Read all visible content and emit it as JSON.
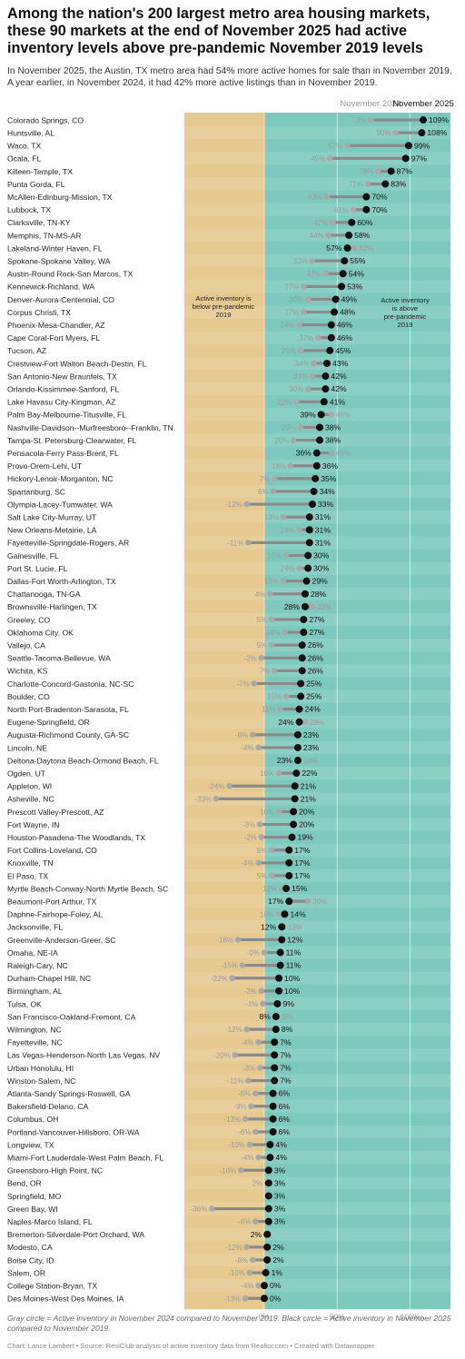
{
  "title": "Among the nation's 200 largest metro area housing markets, these 90 markets at the end of November 2025 had active inventory levels above pre-pandemic November 2019 levels",
  "subtitle": "In November 2025, the Austin, TX metro area had 54% more active homes for sale than in November 2019. A year earlier, in November 2024, it had 42% more active listings than in November 2019.",
  "note": "Gray circle = Active inventory in November 2024 compared to November 2019. Black circle = Active inventory in November 2025 compared to November 2019.",
  "credit": "Chart: Lance Lambert • Source: ResiClub analysis of active inventory data from Realtor.com • Created with Datawrapper",
  "colors": {
    "below_zone": "#e6c98f",
    "above_zone": "#7ec9be",
    "dot_2025": "#111111",
    "dot_2024": "#a8a8a8",
    "line": "#8a8a8a"
  },
  "chart_data": {
    "type": "dot",
    "legend": {
      "series_2024": "November 2024",
      "series_2025": "November 2025"
    },
    "annotations": {
      "below": "Active inventory is below pre-pandemic 2019",
      "above": "Active inventory is above pre-pandemic 2019"
    },
    "x_ticks": [
      {
        "value": 0,
        "label": "0%"
      },
      {
        "value": 50,
        "label": "50%"
      },
      {
        "value": 100,
        "label": "100%"
      }
    ],
    "xlim": [
      -50,
      115
    ],
    "metros": [
      {
        "name": "Colorado Springs, CO",
        "nov2024": 73,
        "nov2025": 109,
        "label2024": "73%",
        "label2025": "109%"
      },
      {
        "name": "Huntsville, AL",
        "nov2024": 90,
        "nov2025": 108,
        "label2024": "90%",
        "label2025": "108%"
      },
      {
        "name": "Waco, TX",
        "nov2024": 57,
        "nov2025": 99,
        "label2024": "57%",
        "label2025": "99%"
      },
      {
        "name": "Ocala, FL",
        "nov2024": 45,
        "nov2025": 97,
        "label2024": "45%",
        "label2025": "97%"
      },
      {
        "name": "Killeen-Temple, TX",
        "nov2024": 78,
        "nov2025": 87,
        "label2024": "78%",
        "label2025": "87%"
      },
      {
        "name": "Punta Gorda, FL",
        "nov2024": 71,
        "nov2025": 83,
        "label2024": "71%",
        "label2025": "83%"
      },
      {
        "name": "McAllen-Edinburg-Mission, TX",
        "nov2024": 43,
        "nov2025": 70,
        "label2024": "43%",
        "label2025": "70%"
      },
      {
        "name": "Lubbock, TX",
        "nov2024": 61,
        "nov2025": 70,
        "label2024": "61%",
        "label2025": "70%"
      },
      {
        "name": "Clarksville, TN-KY",
        "nov2024": 47,
        "nov2025": 60,
        "label2024": "47%",
        "label2025": "60%"
      },
      {
        "name": "Memphis, TN-MS-AR",
        "nov2024": 44,
        "nov2025": 58,
        "label2024": "44%",
        "label2025": "58%"
      },
      {
        "name": "Lakeland-Winter Haven, FL",
        "nov2024": 62,
        "nov2025": 57,
        "label2024": "62%",
        "label2025": "57%"
      },
      {
        "name": "Spokane-Spokane Valley, WA",
        "nov2024": 33,
        "nov2025": 55,
        "label2024": "33%",
        "label2025": "55%"
      },
      {
        "name": "Austin-Round Rock-San Marcos, TX",
        "nov2024": 42,
        "nov2025": 54,
        "label2024": "42%",
        "label2025": "54%"
      },
      {
        "name": "Kennewick-Richland, WA",
        "nov2024": 27,
        "nov2025": 53,
        "label2024": "27%",
        "label2025": "53%"
      },
      {
        "name": "Denver-Aurora-Centennial, CO",
        "nov2024": 30,
        "nov2025": 49,
        "label2024": "30%",
        "label2025": "49%"
      },
      {
        "name": "Corpus Christi, TX",
        "nov2024": 27,
        "nov2025": 48,
        "label2024": "27%",
        "label2025": "48%"
      },
      {
        "name": "Phoenix-Mesa-Chandler, AZ",
        "nov2024": 24,
        "nov2025": 46,
        "label2024": "24%",
        "label2025": "46%"
      },
      {
        "name": "Cape Coral-Fort Myers, FL",
        "nov2024": 37,
        "nov2025": 46,
        "label2024": "37%",
        "label2025": "46%"
      },
      {
        "name": "Tucson, AZ",
        "nov2024": 25,
        "nov2025": 45,
        "label2024": "25%",
        "label2025": "45%"
      },
      {
        "name": "Crestview-Fort Walton Beach-Destin, FL",
        "nov2024": 34,
        "nov2025": 43,
        "label2024": "34%",
        "label2025": "43%"
      },
      {
        "name": "San Antonio-New Braunfels, TX",
        "nov2024": 33,
        "nov2025": 42,
        "label2024": "33%",
        "label2025": "42%"
      },
      {
        "name": "Orlando-Kissimmee-Sanford, FL",
        "nov2024": 30,
        "nov2025": 42,
        "label2024": "30%",
        "label2025": "42%"
      },
      {
        "name": "Lake Havasu City-Kingman, AZ",
        "nov2024": 22,
        "nov2025": 41,
        "label2024": "22%",
        "label2025": "41%"
      },
      {
        "name": "Palm Bay-Melbourne-Titusville, FL",
        "nov2024": 46,
        "nov2025": 39,
        "label2024": "46%",
        "label2025": "39%"
      },
      {
        "name": "Nashville-Davidson--Murfreesboro--Franklin, TN",
        "nov2024": 25,
        "nov2025": 38,
        "label2024": "25%",
        "label2025": "38%"
      },
      {
        "name": "Tampa-St. Petersburg-Clearwater, FL",
        "nov2024": 20,
        "nov2025": 38,
        "label2024": "20%",
        "label2025": "38%"
      },
      {
        "name": "Pensacola-Ferry Pass-Brent, FL",
        "nov2024": 46,
        "nov2025": 36,
        "label2024": "46%",
        "label2025": "36%"
      },
      {
        "name": "Provo-Orem-Lehi, UT",
        "nov2024": 18,
        "nov2025": 36,
        "label2024": "18%",
        "label2025": "36%"
      },
      {
        "name": "Hickory-Lenoir-Morganton, NC",
        "nov2024": 7,
        "nov2025": 35,
        "label2024": "7%",
        "label2025": "35%"
      },
      {
        "name": "Spartanburg, SC",
        "nov2024": 6,
        "nov2025": 34,
        "label2024": "6%",
        "label2025": "34%"
      },
      {
        "name": "Olympia-Lacey-Tumwater, WA",
        "nov2024": -12,
        "nov2025": 33,
        "label2024": "-12%",
        "label2025": "33%"
      },
      {
        "name": "Salt Lake City-Murray, UT",
        "nov2024": 13,
        "nov2025": 31,
        "label2024": "13%",
        "label2025": "31%"
      },
      {
        "name": "New Orleans-Metairie, LA",
        "nov2024": 24,
        "nov2025": 31,
        "label2024": "24%",
        "label2025": "31%"
      },
      {
        "name": "Fayetteville-Springdale-Rogers, AR",
        "nov2024": -11,
        "nov2025": 31,
        "label2024": "-11%",
        "label2025": "31%"
      },
      {
        "name": "Gainesville, FL",
        "nov2024": 15,
        "nov2025": 30,
        "label2024": "15%",
        "label2025": "30%"
      },
      {
        "name": "Port St. Lucie, FL",
        "nov2024": 24,
        "nov2025": 30,
        "label2024": "24%",
        "label2025": "30%"
      },
      {
        "name": "Dallas-Fort Worth-Arlington, TX",
        "nov2024": 13,
        "nov2025": 29,
        "label2024": "13%",
        "label2025": "29%"
      },
      {
        "name": "Chattanooga, TN-GA",
        "nov2024": 4,
        "nov2025": 28,
        "label2024": "4%",
        "label2025": "28%"
      },
      {
        "name": "Brownsville-Harlingen, TX",
        "nov2024": 33,
        "nov2025": 28,
        "label2024": "33%",
        "label2025": "28%"
      },
      {
        "name": "Greeley, CO",
        "nov2024": 5,
        "nov2025": 27,
        "label2024": "5%",
        "label2025": "27%"
      },
      {
        "name": "Oklahoma City, OK",
        "nov2024": 14,
        "nov2025": 27,
        "label2024": "14%",
        "label2025": "27%"
      },
      {
        "name": "Vallejo, CA",
        "nov2024": 5,
        "nov2025": 26,
        "label2024": "5%",
        "label2025": "26%"
      },
      {
        "name": "Seattle-Tacoma-Bellevue, WA",
        "nov2024": -2,
        "nov2025": 26,
        "label2024": "-2%",
        "label2025": "26%"
      },
      {
        "name": "Wichita, KS",
        "nov2024": 7,
        "nov2025": 26,
        "label2024": "7%",
        "label2025": "26%"
      },
      {
        "name": "Charlotte-Concord-Gastonia, NC-SC",
        "nov2024": -7,
        "nov2025": 25,
        "label2024": "-7%",
        "label2025": "25%"
      },
      {
        "name": "Boulder, CO",
        "nov2024": 15,
        "nov2025": 25,
        "label2024": "15%",
        "label2025": "25%"
      },
      {
        "name": "North Port-Bradenton-Sarasota, FL",
        "nov2024": 11,
        "nov2025": 24,
        "label2024": "11%",
        "label2025": "24%"
      },
      {
        "name": "Eugene-Springfield, OR",
        "nov2024": 28,
        "nov2025": 24,
        "label2024": "28%",
        "label2025": "24%"
      },
      {
        "name": "Augusta-Richmond County, GA-SC",
        "nov2024": -8,
        "nov2025": 23,
        "label2024": "-8%",
        "label2025": "23%"
      },
      {
        "name": "Lincoln, NE",
        "nov2024": -4,
        "nov2025": 23,
        "label2024": "-4%",
        "label2025": "23%"
      },
      {
        "name": "Deltona-Daytona Beach-Ormond Beach, FL",
        "nov2024": 24,
        "nov2025": 23,
        "label2024": "24%",
        "label2025": "23%"
      },
      {
        "name": "Ogden, UT",
        "nov2024": 10,
        "nov2025": 22,
        "label2024": "10%",
        "label2025": "22%"
      },
      {
        "name": "Appleton, WI",
        "nov2024": -24,
        "nov2025": 21,
        "label2024": "-24%",
        "label2025": "21%"
      },
      {
        "name": "Asheville, NC",
        "nov2024": -33,
        "nov2025": 21,
        "label2024": "-33%",
        "label2025": "21%"
      },
      {
        "name": "Prescott Valley-Prescott, AZ",
        "nov2024": 10,
        "nov2025": 20,
        "label2024": "10%",
        "label2025": "20%"
      },
      {
        "name": "Fort Wayne, IN",
        "nov2024": -3,
        "nov2025": 20,
        "label2024": "-3%",
        "label2025": "20%"
      },
      {
        "name": "Houston-Pasadena-The Woodlands, TX",
        "nov2024": -2,
        "nov2025": 19,
        "label2024": "-2%",
        "label2025": "19%"
      },
      {
        "name": "Fort Collins-Loveland, CO",
        "nov2024": 5,
        "nov2025": 17,
        "label2024": "5%",
        "label2025": "17%"
      },
      {
        "name": "Knoxville, TN",
        "nov2024": -4,
        "nov2025": 17,
        "label2024": "-4%",
        "label2025": "17%"
      },
      {
        "name": "El Paso, TX",
        "nov2024": 5,
        "nov2025": 17,
        "label2024": "5%",
        "label2025": "17%"
      },
      {
        "name": "Myrtle Beach-Conway-North Myrtle Beach, SC",
        "nov2024": 12,
        "nov2025": 15,
        "label2024": "12%",
        "label2025": "15%"
      },
      {
        "name": "Beaumont-Port Arthur, TX",
        "nov2024": 30,
        "nov2025": 17,
        "label2024": "30%",
        "label2025": "17%"
      },
      {
        "name": "Daphne-Fairhope-Foley, AL",
        "nov2024": 10,
        "nov2025": 14,
        "label2024": "10%",
        "label2025": "14%"
      },
      {
        "name": "Jacksonville, FL",
        "nov2024": 13,
        "nov2025": 12,
        "label2024": "13%",
        "label2025": "12%"
      },
      {
        "name": "Greenville-Anderson-Greer, SC",
        "nov2024": -18,
        "nov2025": 12,
        "label2024": "-18%",
        "label2025": "12%"
      },
      {
        "name": "Omaha, NE-IA",
        "nov2024": 0,
        "nov2025": 11,
        "label2024": "-0%",
        "label2025": "11%"
      },
      {
        "name": "Raleigh-Cary, NC",
        "nov2024": -15,
        "nov2025": 11,
        "label2024": "-15%",
        "label2025": "11%"
      },
      {
        "name": "Durham-Chapel Hill, NC",
        "nov2024": -22,
        "nov2025": 10,
        "label2024": "-22%",
        "label2025": "10%"
      },
      {
        "name": "Birmingham, AL",
        "nov2024": -2,
        "nov2025": 10,
        "label2024": "-2%",
        "label2025": "10%"
      },
      {
        "name": "Tulsa, OK",
        "nov2024": -1,
        "nov2025": 9,
        "label2024": "-1%",
        "label2025": "9%"
      },
      {
        "name": "San Francisco-Oakland-Fremont, CA",
        "nov2024": 9,
        "nov2025": 8,
        "label2024": "9%",
        "label2025": "8%"
      },
      {
        "name": "Wilmington, NC",
        "nov2024": -12,
        "nov2025": 8,
        "label2024": "-12%",
        "label2025": "8%"
      },
      {
        "name": "Fayetteville, NC",
        "nov2024": -4,
        "nov2025": 7,
        "label2024": "-4%",
        "label2025": "7%"
      },
      {
        "name": "Las Vegas-Henderson-North Las Vegas, NV",
        "nov2024": -20,
        "nov2025": 7,
        "label2024": "-20%",
        "label2025": "7%"
      },
      {
        "name": "Urban Honolulu, HI",
        "nov2024": -3,
        "nov2025": 7,
        "label2024": "-3%",
        "label2025": "7%"
      },
      {
        "name": "Winston-Salem, NC",
        "nov2024": -11,
        "nov2025": 7,
        "label2024": "-11%",
        "label2025": "7%"
      },
      {
        "name": "Atlanta-Sandy Springs-Roswell, GA",
        "nov2024": -6,
        "nov2025": 6,
        "label2024": "-6%",
        "label2025": "6%"
      },
      {
        "name": "Bakersfield-Delano, CA",
        "nov2024": -9,
        "nov2025": 6,
        "label2024": "-9%",
        "label2025": "6%"
      },
      {
        "name": "Columbus, OH",
        "nov2024": -13,
        "nov2025": 6,
        "label2024": "-13%",
        "label2025": "6%"
      },
      {
        "name": "Portland-Vancouver-Hillsboro, OR-WA",
        "nov2024": -6,
        "nov2025": 6,
        "label2024": "-6%",
        "label2025": "6%"
      },
      {
        "name": "Longview, TX",
        "nov2024": -10,
        "nov2025": 4,
        "label2024": "-10%",
        "label2025": "4%"
      },
      {
        "name": "Miami-Fort Lauderdale-West Palm Beach, FL",
        "nov2024": -4,
        "nov2025": 4,
        "label2024": "-4%",
        "label2025": "4%"
      },
      {
        "name": "Greensboro-High Point, NC",
        "nov2024": -16,
        "nov2025": 3,
        "label2024": "-16%",
        "label2025": "3%"
      },
      {
        "name": "Bend, OR",
        "nov2024": 2,
        "nov2025": 3,
        "label2024": "2%",
        "label2025": "3%"
      },
      {
        "name": "Springfield, MO",
        "nov2024": 3,
        "nov2025": 3,
        "label2024": "",
        "label2025": "3%"
      },
      {
        "name": "Green Bay, WI",
        "nov2024": -36,
        "nov2025": 3,
        "label2024": "-36%",
        "label2025": "3%"
      },
      {
        "name": "Naples-Marco Island, FL",
        "nov2024": -6,
        "nov2025": 3,
        "label2024": "-6%",
        "label2025": "3%"
      },
      {
        "name": "Bremerton-Silverdale-Port Orchard, WA",
        "nov2024": 3,
        "nov2025": 2,
        "label2024": "",
        "label2025": "2%"
      },
      {
        "name": "Modesto, CA",
        "nov2024": -12,
        "nov2025": 2,
        "label2024": "-12%",
        "label2025": "2%"
      },
      {
        "name": "Boise City, ID",
        "nov2024": -8,
        "nov2025": 2,
        "label2024": "-8%",
        "label2025": "2%"
      },
      {
        "name": "Salem, OR",
        "nov2024": -10,
        "nov2025": 1,
        "label2024": "-10%",
        "label2025": "1%"
      },
      {
        "name": "College Station-Bryan, TX",
        "nov2024": -4,
        "nov2025": 0,
        "label2024": "-4%",
        "label2025": "0%"
      },
      {
        "name": "Des Moines-West Des Moines, IA",
        "nov2024": -13,
        "nov2025": 0,
        "label2024": "-13%",
        "label2025": "0%"
      }
    ]
  }
}
